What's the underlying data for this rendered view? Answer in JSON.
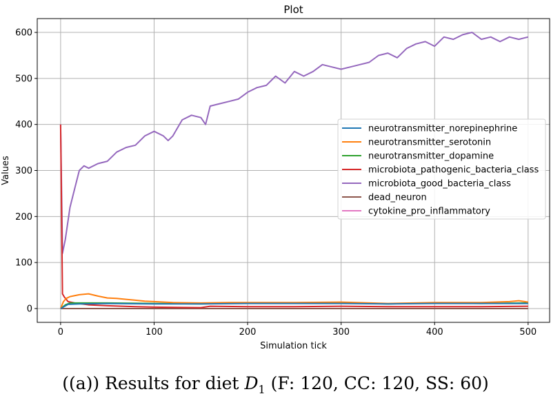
{
  "chart_data": {
    "type": "line",
    "title": "Plot",
    "xlabel": "Simulation tick",
    "ylabel": "Values",
    "xlim": [
      -25,
      523
    ],
    "ylim": [
      -30,
      630
    ],
    "xticks": [
      0,
      100,
      200,
      300,
      400,
      500
    ],
    "yticks": [
      0,
      100,
      200,
      300,
      400,
      500,
      600
    ],
    "grid": true,
    "legend_placement": "center-right",
    "series": [
      {
        "name": "neurotransmitter_norepinephrine",
        "color": "#1f77b4",
        "x": [
          0,
          8,
          20,
          50,
          100,
          150,
          200,
          250,
          300,
          350,
          400,
          450,
          500
        ],
        "y": [
          0,
          9,
          10,
          11,
          10,
          10,
          11,
          11,
          11,
          10,
          11,
          11,
          11
        ]
      },
      {
        "name": "neurotransmitter_serotonin",
        "color": "#ff7f0e",
        "x": [
          0,
          3,
          6,
          10,
          20,
          30,
          40,
          50,
          60,
          70,
          80,
          90,
          100,
          120,
          150,
          180,
          200,
          250,
          300,
          350,
          400,
          450,
          480,
          490,
          500
        ],
        "y": [
          0,
          15,
          22,
          26,
          30,
          32,
          27,
          23,
          22,
          20,
          18,
          16,
          15,
          13,
          12,
          13,
          13,
          13,
          14,
          11,
          13,
          13,
          15,
          17,
          14
        ]
      },
      {
        "name": "neurotransmitter_dopamine",
        "color": "#2ca02c",
        "x": [
          0,
          5,
          10,
          20,
          50,
          100,
          150,
          200,
          250,
          300,
          350,
          400,
          450,
          500
        ],
        "y": [
          0,
          8,
          12,
          12,
          12,
          11,
          10,
          12,
          12,
          12,
          10,
          12,
          11,
          12
        ]
      },
      {
        "name": "microbiota_pathogenic_bacteria_class",
        "color": "#d62728",
        "x": [
          0,
          2,
          4,
          8,
          15,
          30,
          50,
          80,
          100,
          150,
          160,
          200,
          250,
          300,
          350,
          400,
          450,
          500
        ],
        "y": [
          400,
          32,
          25,
          15,
          12,
          8,
          6,
          4,
          3,
          2,
          5,
          4,
          4,
          5,
          4,
          4,
          4,
          5
        ]
      },
      {
        "name": "microbiota_good_bacteria_class",
        "color": "#9467bd",
        "x": [
          0,
          2,
          5,
          10,
          15,
          20,
          25,
          30,
          40,
          50,
          60,
          70,
          80,
          90,
          100,
          110,
          115,
          120,
          130,
          140,
          150,
          155,
          160,
          170,
          180,
          190,
          200,
          210,
          220,
          230,
          240,
          250,
          260,
          270,
          280,
          290,
          300,
          310,
          320,
          330,
          340,
          350,
          360,
          370,
          380,
          390,
          400,
          410,
          420,
          430,
          440,
          450,
          460,
          470,
          480,
          490,
          500
        ],
        "y": [
          400,
          120,
          150,
          220,
          260,
          300,
          310,
          305,
          315,
          320,
          340,
          350,
          355,
          375,
          385,
          375,
          365,
          375,
          410,
          420,
          415,
          400,
          440,
          445,
          450,
          455,
          470,
          480,
          485,
          505,
          490,
          515,
          505,
          515,
          530,
          525,
          520,
          525,
          530,
          535,
          550,
          555,
          545,
          565,
          575,
          580,
          570,
          590,
          585,
          595,
          600,
          585,
          590,
          580,
          590,
          585,
          590
        ]
      },
      {
        "name": "dead_neuron",
        "color": "#8c564b",
        "x": [
          0,
          500
        ],
        "y": [
          0,
          0
        ]
      },
      {
        "name": "cytokine_pro_inflammatory",
        "color": "#e377c2",
        "x": [
          0,
          500
        ],
        "y": [
          0,
          0
        ]
      }
    ]
  },
  "caption": {
    "prefix": "((a)) Results for diet ",
    "symbol": "D",
    "subscript": "1",
    "suffix": " (F: 120, CC: 120, SS: 60)"
  }
}
